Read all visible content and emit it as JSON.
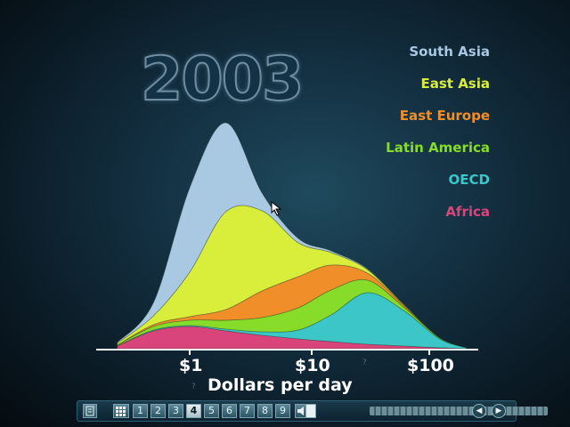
{
  "year": "2003",
  "legend": [
    {
      "label": "South Asia",
      "color": "#a9c8e2"
    },
    {
      "label": "East Asia",
      "color": "#d8ee3a"
    },
    {
      "label": "East Europe",
      "color": "#f08e2a"
    },
    {
      "label": "Latin America",
      "color": "#86dc28"
    },
    {
      "label": "OECD",
      "color": "#3cc6c8"
    },
    {
      "label": "Africa",
      "color": "#d9457a"
    }
  ],
  "xaxis": {
    "title": "Dollars per day",
    "ticks": [
      "$1",
      "$10",
      "$100"
    ],
    "marker": "?"
  },
  "toolbar": {
    "slide_buttons": [
      "1",
      "2",
      "3",
      "4",
      "5",
      "6",
      "7",
      "8",
      "9"
    ],
    "active_slide": "4",
    "prev_icon": "play-back-icon",
    "next_icon": "play-forward-icon"
  },
  "chart_data": {
    "type": "area",
    "stacked": true,
    "x_scale": "log",
    "xlabel": "Dollars per day",
    "x": [
      0.25,
      0.5,
      1,
      2,
      4,
      8,
      15,
      30,
      60,
      120,
      200
    ],
    "series": [
      {
        "name": "Africa",
        "values": [
          3,
          20,
          25,
          20,
          15,
          11,
          8,
          5,
          3,
          1,
          0
        ]
      },
      {
        "name": "OECD",
        "values": [
          0,
          1,
          1,
          2,
          4,
          10,
          30,
          58,
          40,
          10,
          1
        ]
      },
      {
        "name": "Latin America",
        "values": [
          1,
          4,
          6,
          10,
          16,
          25,
          28,
          14,
          4,
          1,
          0
        ]
      },
      {
        "name": "East Europe",
        "values": [
          0,
          2,
          4,
          12,
          30,
          35,
          28,
          8,
          2,
          0,
          0
        ]
      },
      {
        "name": "East Asia",
        "values": [
          2,
          10,
          50,
          110,
          90,
          38,
          14,
          4,
          1,
          0,
          0
        ]
      },
      {
        "name": "South Asia",
        "values": [
          1,
          15,
          95,
          100,
          20,
          5,
          2,
          1,
          0,
          0,
          0
        ]
      }
    ],
    "ylim": [
      0,
      260
    ]
  }
}
